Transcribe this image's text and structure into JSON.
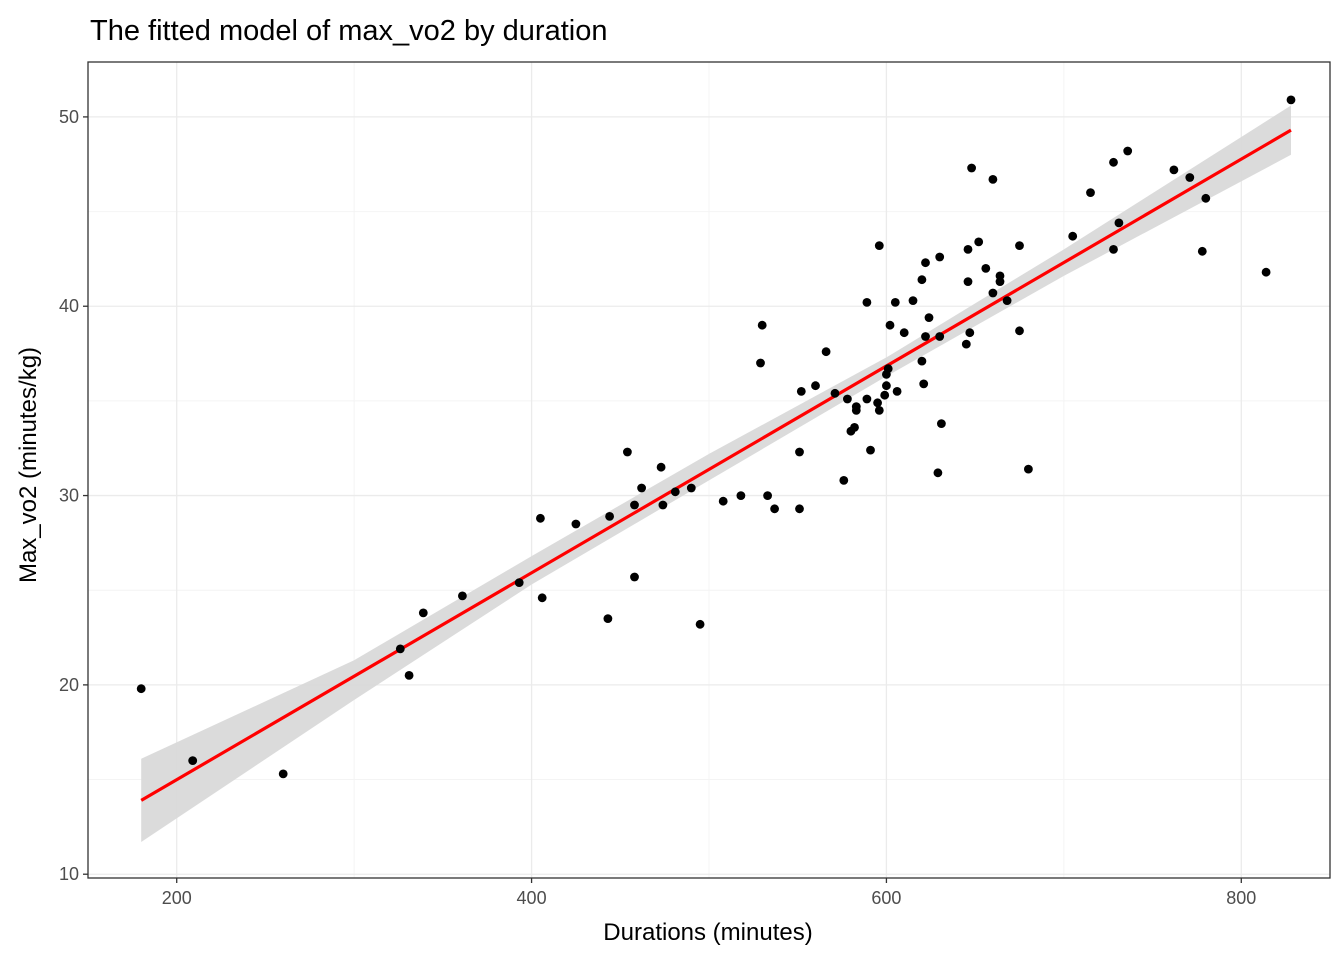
{
  "chart_data": {
    "type": "scatter",
    "title": "The fitted model of max_vo2 by duration",
    "xlabel": "Durations (minutes)",
    "ylabel": "Max_vo2 (minutes/kg)",
    "xlim": [
      150,
      850
    ],
    "ylim": [
      9.8,
      52.9
    ],
    "x_ticks": [
      200,
      400,
      600,
      800
    ],
    "y_ticks": [
      10,
      20,
      30,
      40,
      50
    ],
    "grid": true,
    "legend": "none",
    "colors": {
      "points": "#000000",
      "fit_line": "#ff0000",
      "confidence_band": "#d9d9d9",
      "grid_major": "#ebebeb",
      "grid_minor": "#f4f4f4",
      "panel_border": "#333333"
    },
    "points": [
      {
        "x": 180,
        "y": 19.8
      },
      {
        "x": 209,
        "y": 16.0
      },
      {
        "x": 260,
        "y": 15.3
      },
      {
        "x": 326,
        "y": 21.9
      },
      {
        "x": 331,
        "y": 20.5
      },
      {
        "x": 339,
        "y": 23.8
      },
      {
        "x": 361,
        "y": 24.7
      },
      {
        "x": 393,
        "y": 25.4
      },
      {
        "x": 405,
        "y": 28.8
      },
      {
        "x": 406,
        "y": 24.6
      },
      {
        "x": 425,
        "y": 28.5
      },
      {
        "x": 443,
        "y": 23.5
      },
      {
        "x": 444,
        "y": 28.9
      },
      {
        "x": 454,
        "y": 32.3
      },
      {
        "x": 458,
        "y": 29.5
      },
      {
        "x": 458,
        "y": 25.7
      },
      {
        "x": 462,
        "y": 30.4
      },
      {
        "x": 473,
        "y": 31.5
      },
      {
        "x": 474,
        "y": 29.5
      },
      {
        "x": 481,
        "y": 30.2
      },
      {
        "x": 490,
        "y": 30.4
      },
      {
        "x": 495,
        "y": 23.2
      },
      {
        "x": 508,
        "y": 29.7
      },
      {
        "x": 518,
        "y": 30.0
      },
      {
        "x": 529,
        "y": 37.0
      },
      {
        "x": 530,
        "y": 39.0
      },
      {
        "x": 533,
        "y": 30.0
      },
      {
        "x": 537,
        "y": 29.3
      },
      {
        "x": 551,
        "y": 29.3
      },
      {
        "x": 551,
        "y": 32.3
      },
      {
        "x": 552,
        "y": 35.5
      },
      {
        "x": 560,
        "y": 35.8
      },
      {
        "x": 566,
        "y": 37.6
      },
      {
        "x": 571,
        "y": 35.4
      },
      {
        "x": 576,
        "y": 30.8
      },
      {
        "x": 578,
        "y": 35.1
      },
      {
        "x": 580,
        "y": 33.4
      },
      {
        "x": 582,
        "y": 33.6
      },
      {
        "x": 583,
        "y": 34.5
      },
      {
        "x": 583,
        "y": 34.7
      },
      {
        "x": 589,
        "y": 40.2
      },
      {
        "x": 589,
        "y": 35.1
      },
      {
        "x": 591,
        "y": 32.4
      },
      {
        "x": 595,
        "y": 34.9
      },
      {
        "x": 596,
        "y": 34.5
      },
      {
        "x": 596,
        "y": 43.2
      },
      {
        "x": 599,
        "y": 35.3
      },
      {
        "x": 600,
        "y": 35.8
      },
      {
        "x": 600,
        "y": 36.4
      },
      {
        "x": 601,
        "y": 36.7
      },
      {
        "x": 602,
        "y": 39.0
      },
      {
        "x": 605,
        "y": 40.2
      },
      {
        "x": 606,
        "y": 35.5
      },
      {
        "x": 610,
        "y": 38.6
      },
      {
        "x": 615,
        "y": 40.3
      },
      {
        "x": 620,
        "y": 37.1
      },
      {
        "x": 620,
        "y": 41.4
      },
      {
        "x": 621,
        "y": 35.9
      },
      {
        "x": 622,
        "y": 42.3
      },
      {
        "x": 622,
        "y": 38.4
      },
      {
        "x": 624,
        "y": 39.4
      },
      {
        "x": 629,
        "y": 31.2
      },
      {
        "x": 630,
        "y": 42.6
      },
      {
        "x": 630,
        "y": 38.4
      },
      {
        "x": 631,
        "y": 33.8
      },
      {
        "x": 645,
        "y": 38.0
      },
      {
        "x": 646,
        "y": 43.0
      },
      {
        "x": 646,
        "y": 41.3
      },
      {
        "x": 647,
        "y": 38.6
      },
      {
        "x": 648,
        "y": 47.3
      },
      {
        "x": 652,
        "y": 43.4
      },
      {
        "x": 656,
        "y": 42.0
      },
      {
        "x": 660,
        "y": 46.7
      },
      {
        "x": 660,
        "y": 40.7
      },
      {
        "x": 664,
        "y": 41.3
      },
      {
        "x": 664,
        "y": 41.6
      },
      {
        "x": 668,
        "y": 40.3
      },
      {
        "x": 675,
        "y": 43.2
      },
      {
        "x": 675,
        "y": 38.7
      },
      {
        "x": 680,
        "y": 31.4
      },
      {
        "x": 705,
        "y": 43.7
      },
      {
        "x": 715,
        "y": 46.0
      },
      {
        "x": 728,
        "y": 43.0
      },
      {
        "x": 728,
        "y": 47.6
      },
      {
        "x": 731,
        "y": 44.4
      },
      {
        "x": 736,
        "y": 48.2
      },
      {
        "x": 762,
        "y": 47.2
      },
      {
        "x": 771,
        "y": 46.8
      },
      {
        "x": 778,
        "y": 42.9
      },
      {
        "x": 780,
        "y": 45.7
      },
      {
        "x": 814,
        "y": 41.8
      },
      {
        "x": 828,
        "y": 50.9
      }
    ],
    "fit_line": {
      "x": [
        180,
        828
      ],
      "y": [
        13.9,
        49.3
      ]
    },
    "confidence_band": {
      "x": [
        180,
        300,
        400,
        500,
        600,
        700,
        828
      ],
      "lower": [
        11.7,
        19.2,
        25.3,
        30.8,
        36.3,
        41.6,
        48.0
      ],
      "upper": [
        16.1,
        21.3,
        26.8,
        32.2,
        37.3,
        43.0,
        50.6
      ]
    }
  }
}
